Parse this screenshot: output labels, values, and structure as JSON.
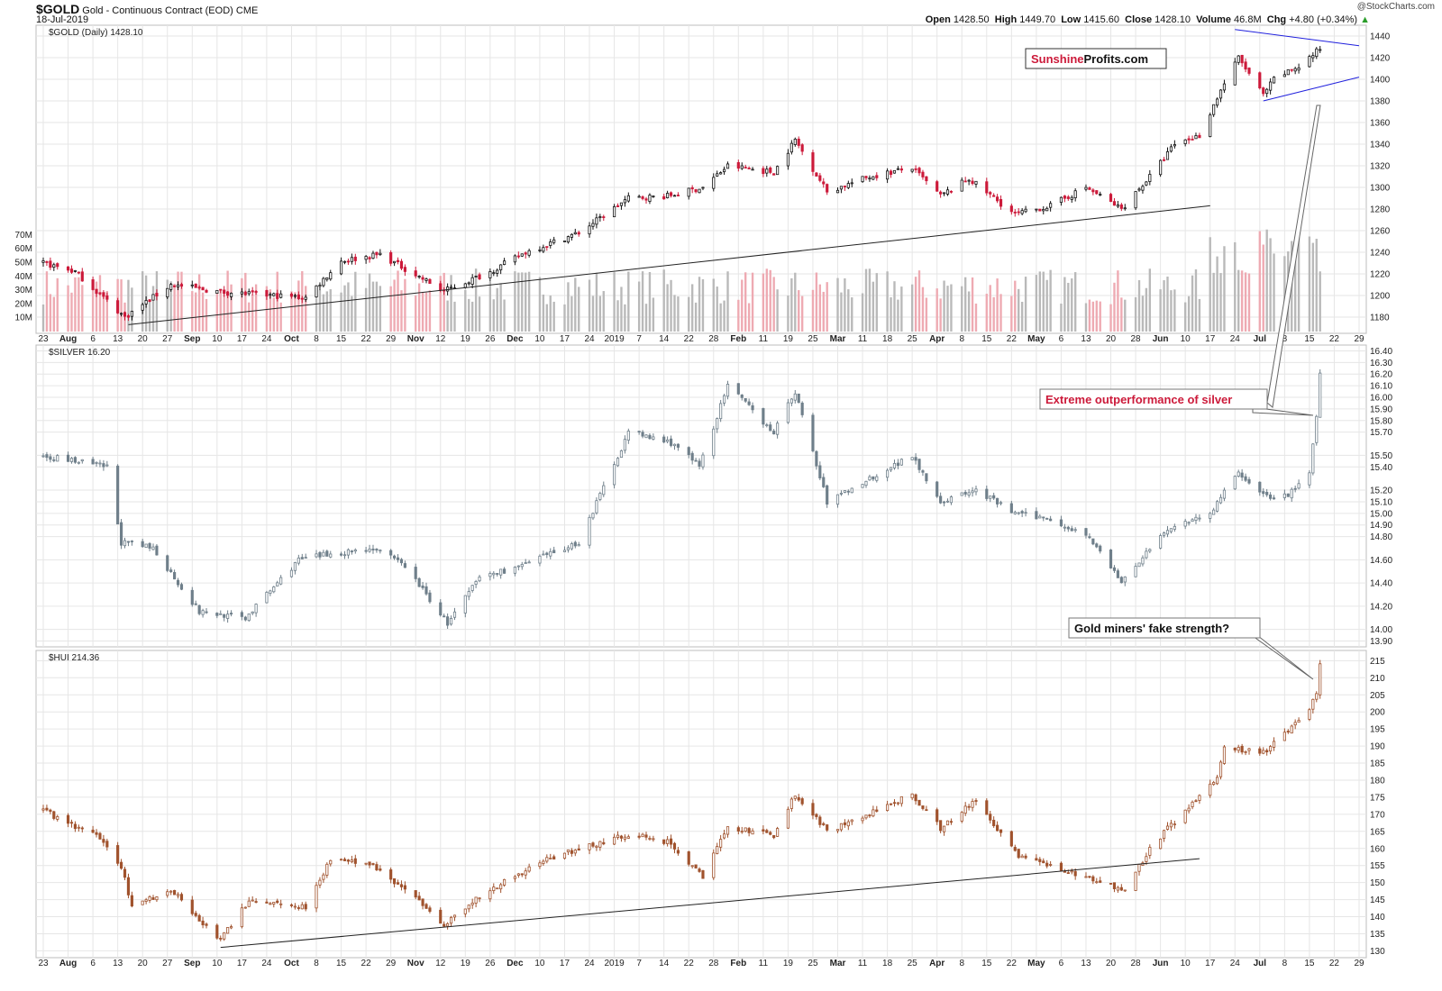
{
  "header": {
    "symbol": "$GOLD",
    "description": "Gold - Continuous Contract (EOD)",
    "exchange": "CME",
    "date": "18-Jul-2019",
    "watermark": "@StockCharts.com",
    "quote_labels": {
      "open": "Open",
      "high": "High",
      "low": "Low",
      "close": "Close",
      "volume": "Volume",
      "chg": "Chg"
    },
    "open": "1428.50",
    "high": "1449.70",
    "low": "1415.60",
    "close": "1428.10",
    "volume": "46.8M",
    "chg": "+4.80 (+0.34%)"
  },
  "colors": {
    "up_candle": "#111111",
    "down_candle": "#cc1a3a",
    "silver": "#6f7f8a",
    "hui": "#a0522d",
    "volume_up": "#b9b9b9",
    "volume_down": "#eeaab2",
    "triangle": "#2020dd",
    "annotation_red": "#cc1a3a",
    "grid": "#e6e6e6"
  },
  "annotations": {
    "brand_red": "Sunshine",
    "brand_black": "Profits.com",
    "silver_note": "Extreme outperformance of silver",
    "hui_note": "Gold miners' fake strength?"
  },
  "x_axis": {
    "tick_labels": [
      "23",
      "Aug",
      "6",
      "13",
      "20",
      "27",
      "Sep",
      "10",
      "17",
      "24",
      "Oct",
      "8",
      "15",
      "22",
      "29",
      "Nov",
      "12",
      "19",
      "26",
      "Dec",
      "10",
      "17",
      "24",
      "2019",
      "7",
      "14",
      "22",
      "28",
      "Feb",
      "11",
      "19",
      "25",
      "Mar",
      "11",
      "18",
      "25",
      "Apr",
      "8",
      "15",
      "22",
      "May",
      "6",
      "13",
      "20",
      "28",
      "Jun",
      "10",
      "17",
      "24",
      "Jul",
      "8",
      "15",
      "22",
      "29"
    ]
  },
  "chart_data": [
    {
      "type": "candlestick",
      "title": "$GOLD (Daily) 1428.10",
      "y_ticks": [
        1180,
        1200,
        1220,
        1240,
        1260,
        1280,
        1300,
        1320,
        1340,
        1360,
        1380,
        1400,
        1420,
        1440
      ],
      "ylim": [
        1165,
        1450
      ],
      "volume_ticks": [
        "10M",
        "20M",
        "30M",
        "40M",
        "50M",
        "60M",
        "70M"
      ],
      "period": "2018-07-23 to 2019-07-18",
      "close_anchors": [
        {
          "date": "2018-07-23",
          "close": 1230
        },
        {
          "date": "2018-08-01",
          "close": 1222
        },
        {
          "date": "2018-08-15",
          "close": 1180
        },
        {
          "date": "2018-08-28",
          "close": 1210
        },
        {
          "date": "2018-09-12",
          "close": 1203
        },
        {
          "date": "2018-10-05",
          "close": 1198
        },
        {
          "date": "2018-10-15",
          "close": 1232
        },
        {
          "date": "2018-10-26",
          "close": 1238
        },
        {
          "date": "2018-11-13",
          "close": 1204
        },
        {
          "date": "2018-11-26",
          "close": 1222
        },
        {
          "date": "2018-12-06",
          "close": 1240
        },
        {
          "date": "2018-12-21",
          "close": 1258
        },
        {
          "date": "2019-01-04",
          "close": 1290
        },
        {
          "date": "2019-01-15",
          "close": 1292
        },
        {
          "date": "2019-01-25",
          "close": 1300
        },
        {
          "date": "2019-02-01",
          "close": 1320
        },
        {
          "date": "2019-02-14",
          "close": 1314
        },
        {
          "date": "2019-02-20",
          "close": 1344
        },
        {
          "date": "2019-03-01",
          "close": 1296
        },
        {
          "date": "2019-03-13",
          "close": 1310
        },
        {
          "date": "2019-03-25",
          "close": 1318
        },
        {
          "date": "2019-04-02",
          "close": 1292
        },
        {
          "date": "2019-04-10",
          "close": 1308
        },
        {
          "date": "2019-04-23",
          "close": 1275
        },
        {
          "date": "2019-05-03",
          "close": 1283
        },
        {
          "date": "2019-05-13",
          "close": 1300
        },
        {
          "date": "2019-05-23",
          "close": 1280
        },
        {
          "date": "2019-05-31",
          "close": 1310
        },
        {
          "date": "2019-06-07",
          "close": 1340
        },
        {
          "date": "2019-06-14",
          "close": 1348
        },
        {
          "date": "2019-06-20",
          "close": 1390
        },
        {
          "date": "2019-06-25",
          "close": 1420
        },
        {
          "date": "2019-07-02",
          "close": 1385
        },
        {
          "date": "2019-07-05",
          "close": 1400
        },
        {
          "date": "2019-07-12",
          "close": 1412
        },
        {
          "date": "2019-07-18",
          "close": 1428.1
        }
      ],
      "trendline": [
        {
          "date": "2018-08-16",
          "value": 1173
        },
        {
          "date": "2019-06-17",
          "value": 1283
        }
      ],
      "triangle_upper": [
        {
          "date": "2019-06-24",
          "value": 1446
        },
        {
          "date": "2019-07-29",
          "value": 1431
        }
      ],
      "triangle_lower": [
        {
          "date": "2019-07-02",
          "value": 1380
        },
        {
          "date": "2019-07-29",
          "value": 1402
        }
      ]
    },
    {
      "type": "candlestick",
      "title": "$SILVER 16.20",
      "y_ticks": [
        13.9,
        14.0,
        14.2,
        14.4,
        14.6,
        14.8,
        14.9,
        15.0,
        15.1,
        15.2,
        15.4,
        15.5,
        15.7,
        15.8,
        15.9,
        16.0,
        16.1,
        16.2,
        16.3,
        16.4
      ],
      "y_tick_labels": [
        "13.90",
        "14.00",
        "14.20",
        "14.40",
        "14.60",
        "14.80",
        "14.90",
        "15.00",
        "15.10",
        "15.20",
        "15.40",
        "15.50",
        "15.70",
        "15.80",
        "15.90",
        "16.00",
        "16.10",
        "16.20",
        "16.30",
        "16.40"
      ],
      "ylim": [
        13.85,
        16.45
      ],
      "close_anchors": [
        {
          "date": "2018-07-23",
          "close": 15.5
        },
        {
          "date": "2018-08-10",
          "close": 15.4
        },
        {
          "date": "2018-08-14",
          "close": 14.75
        },
        {
          "date": "2018-08-23",
          "close": 14.7
        },
        {
          "date": "2018-09-05",
          "close": 14.15
        },
        {
          "date": "2018-09-18",
          "close": 14.1
        },
        {
          "date": "2018-10-03",
          "close": 14.6
        },
        {
          "date": "2018-10-12",
          "close": 14.65
        },
        {
          "date": "2018-10-24",
          "close": 14.7
        },
        {
          "date": "2018-11-02",
          "close": 14.55
        },
        {
          "date": "2018-11-14",
          "close": 14.05
        },
        {
          "date": "2018-11-23",
          "close": 14.45
        },
        {
          "date": "2018-12-05",
          "close": 14.55
        },
        {
          "date": "2018-12-21",
          "close": 14.75
        },
        {
          "date": "2019-01-04",
          "close": 15.7
        },
        {
          "date": "2019-01-17",
          "close": 15.6
        },
        {
          "date": "2019-01-24",
          "close": 15.4
        },
        {
          "date": "2019-02-01",
          "close": 16.1
        },
        {
          "date": "2019-02-14",
          "close": 15.7
        },
        {
          "date": "2019-02-20",
          "close": 16.05
        },
        {
          "date": "2019-03-01",
          "close": 15.1
        },
        {
          "date": "2019-03-13",
          "close": 15.3
        },
        {
          "date": "2019-03-25",
          "close": 15.5
        },
        {
          "date": "2019-04-02",
          "close": 15.1
        },
        {
          "date": "2019-04-12",
          "close": 15.2
        },
        {
          "date": "2019-04-23",
          "close": 15.0
        },
        {
          "date": "2019-05-03",
          "close": 14.95
        },
        {
          "date": "2019-05-14",
          "close": 14.8
        },
        {
          "date": "2019-05-23",
          "close": 14.4
        },
        {
          "date": "2019-05-31",
          "close": 14.7
        },
        {
          "date": "2019-06-07",
          "close": 14.9
        },
        {
          "date": "2019-06-17",
          "close": 15.0
        },
        {
          "date": "2019-06-25",
          "close": 15.35
        },
        {
          "date": "2019-07-05",
          "close": 15.1
        },
        {
          "date": "2019-07-11",
          "close": 15.2
        },
        {
          "date": "2019-07-15",
          "close": 15.35
        },
        {
          "date": "2019-07-17",
          "close": 15.85
        },
        {
          "date": "2019-07-18",
          "close": 16.2
        }
      ]
    },
    {
      "type": "candlestick",
      "title": "$HUI 214.36",
      "y_ticks": [
        130,
        135,
        140,
        145,
        150,
        155,
        160,
        165,
        170,
        175,
        180,
        185,
        190,
        195,
        200,
        205,
        210,
        215
      ],
      "ylim": [
        128,
        218
      ],
      "close_anchors": [
        {
          "date": "2018-07-23",
          "close": 171
        },
        {
          "date": "2018-08-08",
          "close": 163
        },
        {
          "date": "2018-08-14",
          "close": 155
        },
        {
          "date": "2018-08-17",
          "close": 143
        },
        {
          "date": "2018-08-28",
          "close": 148
        },
        {
          "date": "2018-09-11",
          "close": 133
        },
        {
          "date": "2018-09-19",
          "close": 145
        },
        {
          "date": "2018-10-05",
          "close": 143
        },
        {
          "date": "2018-10-12",
          "close": 157
        },
        {
          "date": "2018-10-24",
          "close": 155
        },
        {
          "date": "2018-11-02",
          "close": 148
        },
        {
          "date": "2018-11-13",
          "close": 138
        },
        {
          "date": "2018-11-26",
          "close": 148
        },
        {
          "date": "2018-12-10",
          "close": 156
        },
        {
          "date": "2018-12-21",
          "close": 160
        },
        {
          "date": "2019-01-04",
          "close": 164
        },
        {
          "date": "2019-01-15",
          "close": 162
        },
        {
          "date": "2019-01-25",
          "close": 152
        },
        {
          "date": "2019-02-01",
          "close": 166
        },
        {
          "date": "2019-02-14",
          "close": 164
        },
        {
          "date": "2019-02-20",
          "close": 176
        },
        {
          "date": "2019-03-01",
          "close": 165
        },
        {
          "date": "2019-03-13",
          "close": 170
        },
        {
          "date": "2019-03-25",
          "close": 176
        },
        {
          "date": "2019-04-02",
          "close": 166
        },
        {
          "date": "2019-04-12",
          "close": 174
        },
        {
          "date": "2019-04-24",
          "close": 158
        },
        {
          "date": "2019-05-03",
          "close": 155
        },
        {
          "date": "2019-05-14",
          "close": 151
        },
        {
          "date": "2019-05-24",
          "close": 148
        },
        {
          "date": "2019-05-31",
          "close": 160
        },
        {
          "date": "2019-06-07",
          "close": 168
        },
        {
          "date": "2019-06-19",
          "close": 180
        },
        {
          "date": "2019-06-21",
          "close": 190
        },
        {
          "date": "2019-07-02",
          "close": 188
        },
        {
          "date": "2019-07-10",
          "close": 196
        },
        {
          "date": "2019-07-15",
          "close": 200
        },
        {
          "date": "2019-07-17",
          "close": 206
        },
        {
          "date": "2019-07-18",
          "close": 214.36
        }
      ],
      "trendline": [
        {
          "date": "2018-09-11",
          "value": 131
        },
        {
          "date": "2019-06-14",
          "value": 157
        }
      ]
    }
  ]
}
